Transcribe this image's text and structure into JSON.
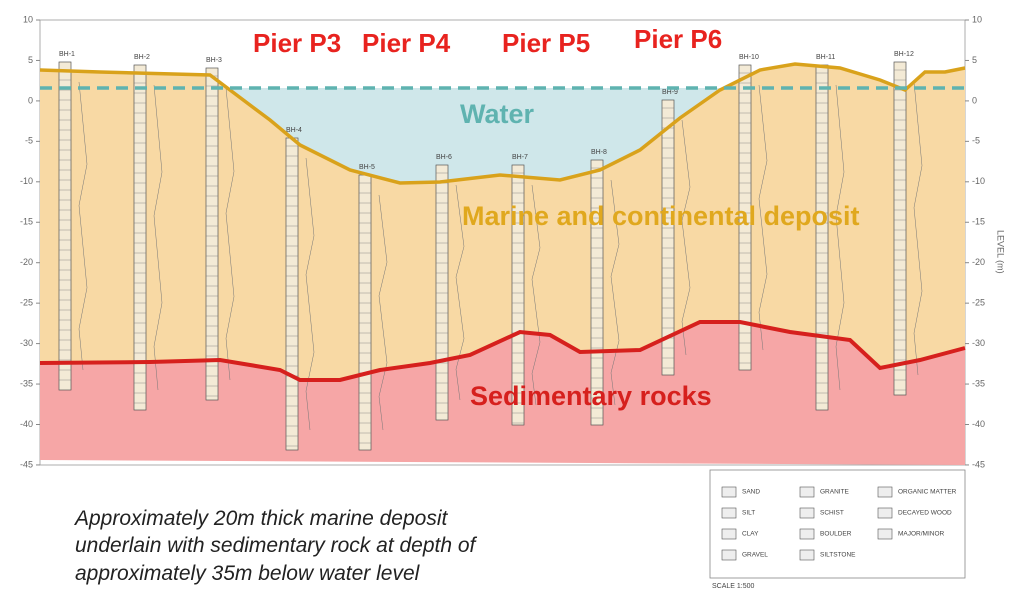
{
  "piers": [
    "Pier P3",
    "Pier P4",
    "Pier P5",
    "Pier P6"
  ],
  "zones": {
    "water": "Water",
    "deposit": "Marine and continental deposit",
    "rock": "Sedimentary rocks"
  },
  "axis": {
    "ticks": [
      10,
      5,
      0,
      -5,
      -10,
      -15,
      -20,
      -25,
      -30,
      -35,
      -40,
      -45
    ],
    "label": "LEVEL (m)"
  },
  "boreholes": [
    "BH-1",
    "BH-2",
    "BH-3",
    "BH-4",
    "BH-5",
    "BH-6",
    "BH-7",
    "BH-8",
    "BH-9",
    "BH-10",
    "BH-11",
    "BH-12"
  ],
  "legend": {
    "items": [
      "SAND",
      "SILT",
      "CLAY",
      "GRAVEL",
      "GRANITE",
      "SCHIST",
      "BOULDER",
      "SILTSTONE",
      "ORGANIC MATTER",
      "DECAYED WOOD",
      "MAJOR/MINOR"
    ],
    "scale": "SCALE 1:500"
  },
  "caption": [
    "Approximately 20m thick marine deposit",
    "underlain with sedimentary rock at depth of",
    "approximately 35m below water level"
  ]
}
